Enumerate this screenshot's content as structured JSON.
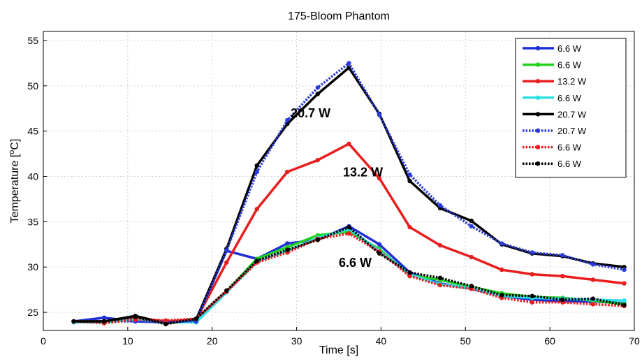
{
  "chart_data": {
    "type": "line",
    "title": "175-Bloom Phantom",
    "xlabel": "Time [s]",
    "ylabel_main": "Temperature [",
    "ylabel_sup": "o",
    "ylabel_end": "C]",
    "xlim": [
      0,
      70
    ],
    "ylim": [
      23,
      56
    ],
    "xticks": [
      0,
      10,
      20,
      30,
      40,
      50,
      60,
      70
    ],
    "yticks": [
      25,
      30,
      35,
      40,
      45,
      50,
      55
    ],
    "grid": true,
    "legend_position": "top-right",
    "annotations": [
      {
        "text": "20.7 W",
        "x": 29.3,
        "y": 46.5
      },
      {
        "text": "13.2 W",
        "x": 35.5,
        "y": 40.0
      },
      {
        "text": "6.6 W",
        "x": 35.0,
        "y": 30.0
      }
    ],
    "x": [
      3.6,
      7.2,
      10.9,
      14.5,
      18.1,
      21.7,
      25.3,
      28.9,
      32.5,
      36.2,
      39.8,
      43.4,
      47.0,
      50.7,
      54.3,
      57.9,
      61.5,
      65.1,
      68.8
    ],
    "series": [
      {
        "name": "6.6 W",
        "color": "#1f2fd6",
        "dash": false,
        "values": [
          24.0,
          24.4,
          24.0,
          23.9,
          24.1,
          31.8,
          30.9,
          32.6,
          33.0,
          34.5,
          32.5,
          29.4,
          28.2,
          27.6,
          26.8,
          26.4,
          26.2,
          26.2,
          26.0
        ]
      },
      {
        "name": "6.6 W",
        "color": "#22d11f",
        "dash": false,
        "values": [
          24.0,
          24.0,
          24.3,
          23.9,
          24.2,
          27.3,
          30.9,
          32.2,
          33.5,
          33.9,
          32.0,
          29.1,
          28.6,
          27.8,
          27.1,
          26.7,
          26.6,
          26.3,
          25.9
        ]
      },
      {
        "name": "13.2 W",
        "color": "#e81e1e",
        "dash": false,
        "values": [
          24.0,
          24.0,
          24.4,
          24.0,
          24.2,
          30.5,
          36.4,
          40.5,
          41.8,
          43.6,
          39.8,
          34.4,
          32.4,
          31.1,
          29.7,
          29.2,
          29.0,
          28.6,
          28.2
        ]
      },
      {
        "name": "6.6 W",
        "color": "#2ee0e6",
        "dash": false,
        "values": [
          23.9,
          23.9,
          24.2,
          23.9,
          23.9,
          27.2,
          30.6,
          31.8,
          33.2,
          34.2,
          31.8,
          29.2,
          28.1,
          27.7,
          26.8,
          26.6,
          26.5,
          26.4,
          26.3
        ]
      },
      {
        "name": "20.7 W",
        "color": "#000000",
        "dash": false,
        "values": [
          24.0,
          24.0,
          24.6,
          23.8,
          24.2,
          32.0,
          41.2,
          45.8,
          49.1,
          52.0,
          46.9,
          39.5,
          36.5,
          35.1,
          32.5,
          31.5,
          31.2,
          30.4,
          30.0
        ]
      },
      {
        "name": "20.7 W",
        "color": "#2b3ad8",
        "dash": true,
        "values": [
          24.0,
          24.0,
          24.0,
          24.0,
          24.0,
          31.8,
          40.5,
          46.2,
          49.8,
          52.5,
          46.8,
          40.2,
          36.8,
          34.5,
          32.6,
          31.6,
          31.3,
          30.3,
          29.7
        ]
      },
      {
        "name": "6.6 W",
        "color": "#e81e1e",
        "dash": true,
        "values": [
          24.0,
          23.8,
          24.2,
          24.1,
          24.3,
          27.3,
          30.5,
          31.6,
          33.1,
          33.7,
          31.7,
          29.0,
          28.0,
          27.6,
          26.6,
          26.1,
          26.1,
          25.9,
          25.7
        ]
      },
      {
        "name": "6.6 W",
        "color": "#000000",
        "dash": true,
        "values": [
          24.0,
          24.0,
          24.5,
          23.7,
          24.3,
          27.4,
          30.7,
          31.9,
          33.0,
          34.4,
          31.5,
          29.4,
          28.8,
          27.9,
          26.9,
          26.8,
          26.4,
          26.5,
          25.8
        ]
      }
    ]
  }
}
